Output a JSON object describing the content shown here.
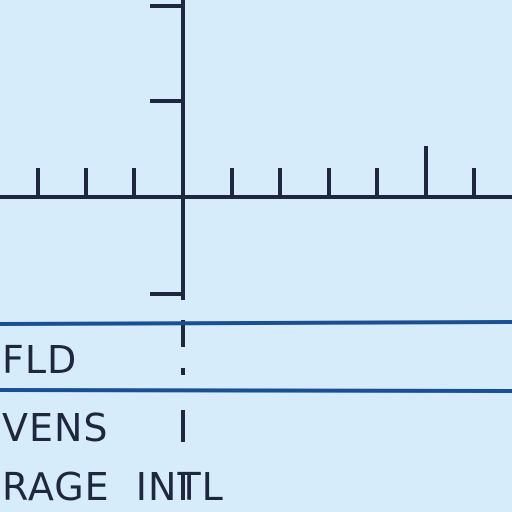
{
  "display": {
    "background": "#d6ecfa",
    "ink_color": "#1f2740",
    "band_color": "#1a4f94"
  },
  "labels": {
    "line1": "FLD",
    "line2": "VENS",
    "line3": "RAGE  INTL"
  }
}
